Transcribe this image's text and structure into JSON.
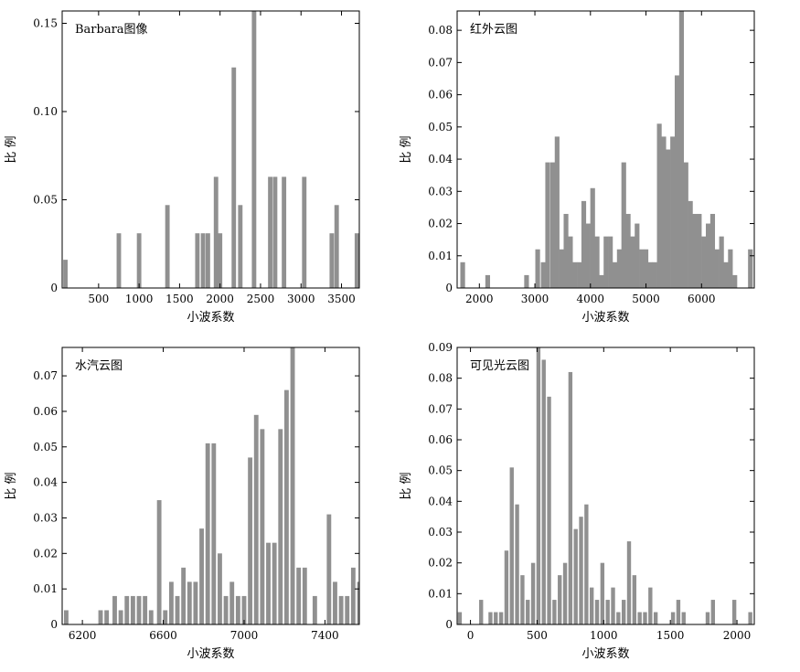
{
  "chart_data": [
    {
      "type": "bar",
      "title": "Barbara图像",
      "xlabel": "小波系数",
      "ylabel": "比 例",
      "xlim": [
        50,
        3720
      ],
      "ylim": [
        0,
        0.157
      ],
      "xticks": [
        500,
        1000,
        1500,
        2000,
        2500,
        3000,
        3500
      ],
      "yticks": [
        0,
        0.05,
        0.1,
        0.15
      ],
      "ytick_labels": [
        "0",
        "0.05",
        "0.10",
        "0.15"
      ],
      "bar_width": 55,
      "bars": [
        [
          90,
          0.016
        ],
        [
          750,
          0.031
        ],
        [
          1000,
          0.031
        ],
        [
          1350,
          0.047
        ],
        [
          1720,
          0.031
        ],
        [
          1790,
          0.031
        ],
        [
          1850,
          0.031
        ],
        [
          1950,
          0.063
        ],
        [
          2000,
          0.031
        ],
        [
          2170,
          0.125
        ],
        [
          2250,
          0.047
        ],
        [
          2420,
          0.157
        ],
        [
          2620,
          0.063
        ],
        [
          2680,
          0.063
        ],
        [
          2790,
          0.063
        ],
        [
          3040,
          0.063
        ],
        [
          3380,
          0.031
        ],
        [
          3440,
          0.047
        ],
        [
          3690,
          0.031
        ]
      ]
    },
    {
      "type": "bar",
      "title": "红外云图",
      "xlabel": "小波系数",
      "ylabel": "比 例",
      "xlim": [
        1600,
        6950
      ],
      "ylim": [
        0,
        0.086
      ],
      "xticks": [
        2000,
        3000,
        4000,
        5000,
        6000
      ],
      "yticks": [
        0,
        0.01,
        0.02,
        0.03,
        0.04,
        0.05,
        0.06,
        0.07,
        0.08
      ],
      "ytick_labels": [
        "0",
        "0.01",
        "0.02",
        "0.03",
        "0.04",
        "0.05",
        "0.06",
        "0.07",
        "0.08"
      ],
      "bar_width": 85,
      "bars": [
        [
          1700,
          0.008
        ],
        [
          2150,
          0.004
        ],
        [
          2850,
          0.004
        ],
        [
          3050,
          0.012
        ],
        [
          3150,
          0.008
        ],
        [
          3230,
          0.039
        ],
        [
          3320,
          0.039
        ],
        [
          3400,
          0.047
        ],
        [
          3480,
          0.012
        ],
        [
          3560,
          0.023
        ],
        [
          3640,
          0.016
        ],
        [
          3720,
          0.008
        ],
        [
          3800,
          0.008
        ],
        [
          3880,
          0.027
        ],
        [
          3960,
          0.02
        ],
        [
          4040,
          0.031
        ],
        [
          4120,
          0.016
        ],
        [
          4200,
          0.004
        ],
        [
          4280,
          0.016
        ],
        [
          4360,
          0.016
        ],
        [
          4440,
          0.008
        ],
        [
          4520,
          0.012
        ],
        [
          4600,
          0.039
        ],
        [
          4680,
          0.023
        ],
        [
          4760,
          0.016
        ],
        [
          4840,
          0.02
        ],
        [
          4920,
          0.012
        ],
        [
          5000,
          0.012
        ],
        [
          5080,
          0.008
        ],
        [
          5160,
          0.008
        ],
        [
          5240,
          0.051
        ],
        [
          5320,
          0.047
        ],
        [
          5400,
          0.043
        ],
        [
          5480,
          0.047
        ],
        [
          5560,
          0.066
        ],
        [
          5640,
          0.086
        ],
        [
          5720,
          0.039
        ],
        [
          5800,
          0.027
        ],
        [
          5880,
          0.023
        ],
        [
          5960,
          0.023
        ],
        [
          6040,
          0.016
        ],
        [
          6120,
          0.02
        ],
        [
          6200,
          0.023
        ],
        [
          6280,
          0.012
        ],
        [
          6360,
          0.016
        ],
        [
          6440,
          0.008
        ],
        [
          6520,
          0.012
        ],
        [
          6600,
          0.004
        ],
        [
          6880,
          0.012
        ]
      ]
    },
    {
      "type": "bar",
      "title": "水汽云图",
      "xlabel": "小波系数",
      "ylabel": "比 例",
      "xlim": [
        6100,
        7570
      ],
      "ylim": [
        0,
        0.078
      ],
      "xticks": [
        6200,
        6600,
        7000,
        7400
      ],
      "yticks": [
        0,
        0.01,
        0.02,
        0.03,
        0.04,
        0.05,
        0.06,
        0.07
      ],
      "ytick_labels": [
        "0",
        "0.01",
        "0.02",
        "0.03",
        "0.04",
        "0.05",
        "0.06",
        "0.07"
      ],
      "bar_width": 22,
      "bars": [
        [
          6120,
          0.004
        ],
        [
          6290,
          0.004
        ],
        [
          6320,
          0.004
        ],
        [
          6360,
          0.008
        ],
        [
          6390,
          0.004
        ],
        [
          6420,
          0.008
        ],
        [
          6450,
          0.008
        ],
        [
          6480,
          0.008
        ],
        [
          6510,
          0.008
        ],
        [
          6540,
          0.004
        ],
        [
          6580,
          0.035
        ],
        [
          6610,
          0.004
        ],
        [
          6640,
          0.012
        ],
        [
          6670,
          0.008
        ],
        [
          6700,
          0.016
        ],
        [
          6730,
          0.012
        ],
        [
          6760,
          0.012
        ],
        [
          6790,
          0.027
        ],
        [
          6820,
          0.051
        ],
        [
          6850,
          0.051
        ],
        [
          6880,
          0.02
        ],
        [
          6910,
          0.008
        ],
        [
          6940,
          0.012
        ],
        [
          6970,
          0.008
        ],
        [
          7000,
          0.008
        ],
        [
          7030,
          0.047
        ],
        [
          7060,
          0.059
        ],
        [
          7090,
          0.055
        ],
        [
          7120,
          0.023
        ],
        [
          7150,
          0.023
        ],
        [
          7180,
          0.055
        ],
        [
          7210,
          0.066
        ],
        [
          7240,
          0.078
        ],
        [
          7270,
          0.016
        ],
        [
          7300,
          0.016
        ],
        [
          7350,
          0.008
        ],
        [
          7420,
          0.031
        ],
        [
          7450,
          0.012
        ],
        [
          7480,
          0.008
        ],
        [
          7510,
          0.008
        ],
        [
          7540,
          0.016
        ],
        [
          7570,
          0.012
        ]
      ]
    },
    {
      "type": "bar",
      "title": "可见光云图",
      "xlabel": "小波系数",
      "ylabel": "比 例",
      "xlim": [
        -100,
        2130
      ],
      "ylim": [
        0,
        0.09
      ],
      "xticks": [
        0,
        500,
        1000,
        1500,
        2000
      ],
      "yticks": [
        0,
        0.01,
        0.02,
        0.03,
        0.04,
        0.05,
        0.06,
        0.07,
        0.08,
        0.09
      ],
      "ytick_labels": [
        "0",
        "0.01",
        "0.02",
        "0.03",
        "0.04",
        "0.05",
        "0.06",
        "0.07",
        "0.08",
        "0.09"
      ],
      "bar_width": 30,
      "bars": [
        [
          -80,
          0.004
        ],
        [
          80,
          0.008
        ],
        [
          150,
          0.004
        ],
        [
          190,
          0.004
        ],
        [
          230,
          0.004
        ],
        [
          270,
          0.024
        ],
        [
          310,
          0.051
        ],
        [
          350,
          0.039
        ],
        [
          390,
          0.016
        ],
        [
          430,
          0.008
        ],
        [
          470,
          0.02
        ],
        [
          510,
          0.09
        ],
        [
          550,
          0.086
        ],
        [
          590,
          0.074
        ],
        [
          630,
          0.008
        ],
        [
          670,
          0.016
        ],
        [
          710,
          0.02
        ],
        [
          750,
          0.082
        ],
        [
          790,
          0.031
        ],
        [
          830,
          0.035
        ],
        [
          870,
          0.039
        ],
        [
          910,
          0.012
        ],
        [
          950,
          0.008
        ],
        [
          990,
          0.02
        ],
        [
          1030,
          0.008
        ],
        [
          1070,
          0.012
        ],
        [
          1110,
          0.004
        ],
        [
          1150,
          0.008
        ],
        [
          1190,
          0.027
        ],
        [
          1230,
          0.016
        ],
        [
          1270,
          0.004
        ],
        [
          1310,
          0.004
        ],
        [
          1350,
          0.012
        ],
        [
          1390,
          0.004
        ],
        [
          1520,
          0.004
        ],
        [
          1560,
          0.008
        ],
        [
          1600,
          0.004
        ],
        [
          1780,
          0.004
        ],
        [
          1820,
          0.008
        ],
        [
          1980,
          0.008
        ],
        [
          2100,
          0.004
        ]
      ]
    }
  ]
}
